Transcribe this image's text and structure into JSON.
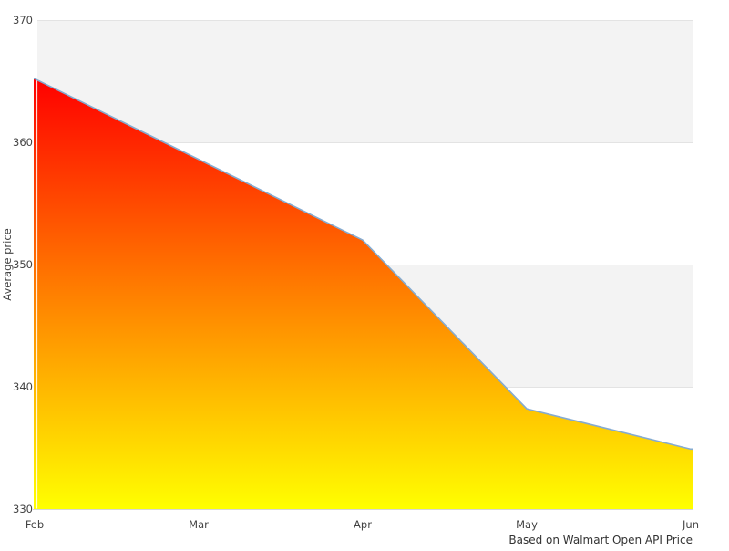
{
  "chart_data": {
    "type": "area",
    "title": "",
    "ylabel": "Average price",
    "xlabel": "",
    "caption": "Based on Walmart Open API Price",
    "categories": [
      "Feb",
      "Mar",
      "Apr",
      "May",
      "Jun"
    ],
    "series": [
      {
        "name": "Average price",
        "values": [
          365.2,
          358.6,
          352.0,
          338.2,
          334.9
        ]
      }
    ],
    "ylim": [
      330,
      370
    ],
    "yticks": [
      330,
      340,
      350,
      360,
      370
    ],
    "legend": false,
    "grid": "horizontal alternating bands",
    "colors": {
      "area_gradient_top": "#ff0000",
      "area_gradient_bottom": "#ffff00",
      "line": "#85abd0",
      "band_fill": "#f3f3f3",
      "gridline": "#e3e3e3",
      "axis_line": "#d6d6d6",
      "right_border": "#dcdcdc",
      "tick_text": "#444444",
      "caption_text": "#333333"
    }
  }
}
